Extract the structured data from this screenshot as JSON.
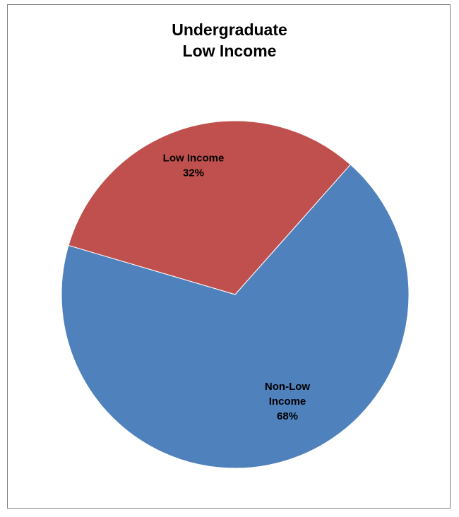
{
  "chart_data": {
    "type": "pie",
    "title_lines": [
      "Undergraduate",
      "Low Income"
    ],
    "slices": [
      {
        "name": "Low Income",
        "value": 32,
        "label_lines": [
          "Low Income",
          "32%"
        ],
        "color": "#c0504d"
      },
      {
        "name": "Non-Low Income",
        "value": 68,
        "label_lines": [
          "Non-Low",
          "Income",
          "68%"
        ],
        "color": "#4f81bd"
      }
    ],
    "legend": "none"
  }
}
